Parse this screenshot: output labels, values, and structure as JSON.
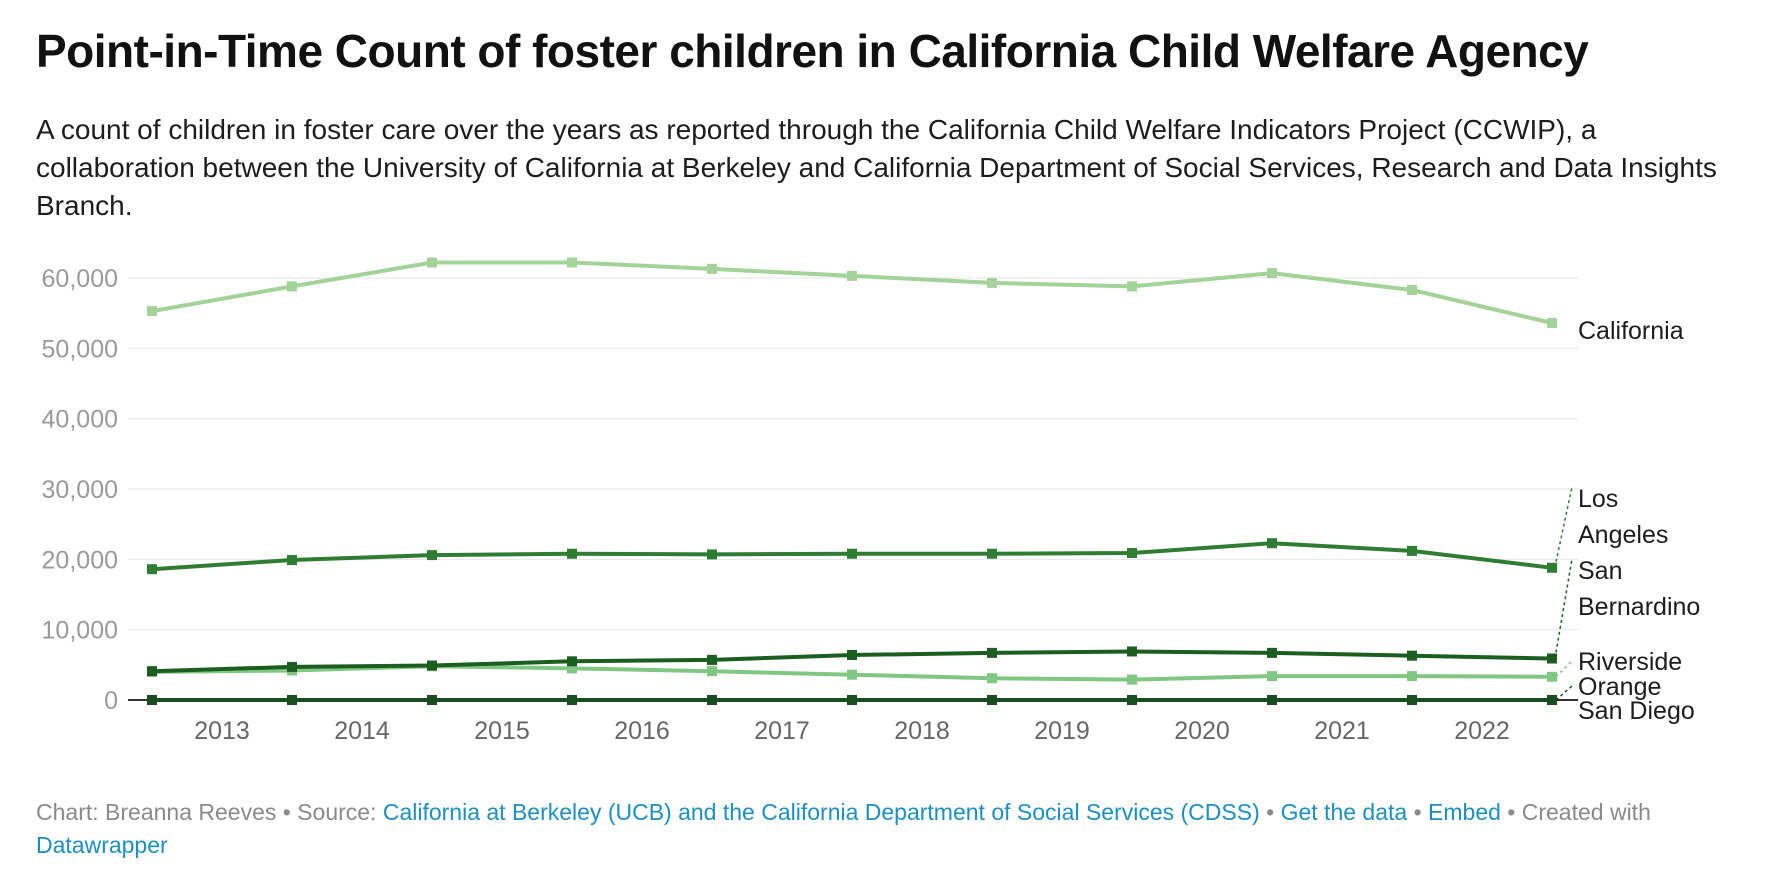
{
  "title": "Point-in-Time Count of foster children in California Child Welfare Agency",
  "subtitle": "A count of children in foster care over the years as reported through the California Child Welfare Indicators Project (CCWIP), a collaboration between the University of California at Berkeley and California Department of Social Services, Research and Data Insights Branch.",
  "chart_data": {
    "type": "line",
    "title": "Point-in-Time Count of foster children in California Child Welfare Agency",
    "xlabel": "",
    "ylabel": "",
    "x": [
      2012.5,
      2013.5,
      2014.5,
      2015.5,
      2016.5,
      2017.5,
      2018.5,
      2019.5,
      2020.5,
      2021.5,
      2022.5
    ],
    "x_ticks": [
      2013,
      2014,
      2015,
      2016,
      2017,
      2018,
      2019,
      2020,
      2021,
      2022
    ],
    "x_tick_labels": [
      "2013",
      "2014",
      "2015",
      "2016",
      "2017",
      "2018",
      "2019",
      "2020",
      "2021",
      "2022"
    ],
    "xlim": [
      2012.5,
      2022.5
    ],
    "ylim": [
      0,
      60000
    ],
    "y_ticks": [
      0,
      10000,
      20000,
      30000,
      40000,
      50000,
      60000
    ],
    "y_tick_labels": [
      "0",
      "10,000",
      "20,000",
      "30,000",
      "40,000",
      "50,000",
      "60,000"
    ],
    "grid": true,
    "legend": "direct labels at right",
    "series": [
      {
        "name": "California",
        "label_lines": [
          "California"
        ],
        "color": "#a3d398",
        "values": [
          55300,
          58800,
          62200,
          62200,
          61300,
          60300,
          59300,
          58800,
          60700,
          58300,
          53600
        ]
      },
      {
        "name": "Los Angeles",
        "label_lines": [
          "Los",
          "Angeles"
        ],
        "color": "#2e7d32",
        "values": [
          18600,
          19900,
          20600,
          20800,
          20700,
          20800,
          20800,
          20900,
          22300,
          21200,
          18800
        ]
      },
      {
        "name": "San Bernardino",
        "label_lines": [
          "San",
          "Bernardino"
        ],
        "color": "#1b5e20",
        "values": [
          4100,
          4700,
          4900,
          5500,
          5700,
          6400,
          6700,
          6900,
          6700,
          6300,
          5900
        ]
      },
      {
        "name": "Riverside",
        "label_lines": [
          "Riverside"
        ],
        "color": "#81c784",
        "values": [
          4000,
          4200,
          4800,
          4500,
          4100,
          3600,
          3100,
          2900,
          3400,
          3400,
          3300
        ]
      },
      {
        "name": "Orange",
        "label_lines": [
          "Orange"
        ],
        "color": "#1a4d1f",
        "values": [
          0,
          0,
          0,
          0,
          0,
          0,
          0,
          0,
          0,
          0,
          0
        ]
      },
      {
        "name": "San Diego",
        "label_lines": [
          "San Diego"
        ],
        "color": "#0f3a14",
        "values": [
          0,
          0,
          0,
          0,
          0,
          0,
          0,
          0,
          0,
          0,
          0
        ]
      }
    ]
  },
  "footer": {
    "chart_prefix": "Chart: Breanna Reeves • Source: ",
    "source_link": "California at Berkeley (UCB) and the California Department of Social Services (CDSS)",
    "sep1": " • ",
    "get_data": "Get the data",
    "sep2": " • ",
    "embed": "Embed",
    "created": " • Created with ",
    "datawrapper": "Datawrapper"
  }
}
